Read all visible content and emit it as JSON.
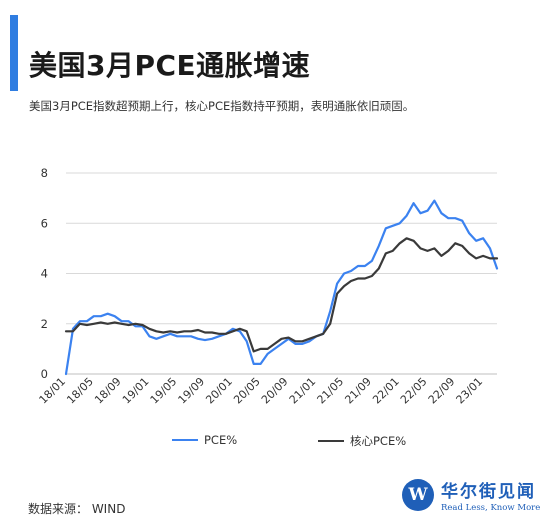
{
  "header": {
    "title": "美国3月PCE通胀增速",
    "subtitle": "美国3月PCE指数超预期上行，核心PCE指数持平预期，表明通胀依旧顽固。"
  },
  "footer": {
    "source": "数据来源： WIND",
    "logo_name": "华尔街见闻",
    "logo_slogan": "Read Less, Know More",
    "logo_mark": "W"
  },
  "colors": {
    "pce": "#3b82f0",
    "core": "#3a3a3a",
    "grid": "#d9d9d9",
    "accent": "#2f7de1"
  },
  "chart_data": {
    "type": "line",
    "title": "",
    "xlabel": "",
    "ylabel": "",
    "ylim": [
      0,
      8
    ],
    "yticks": [
      0,
      2,
      4,
      6,
      8
    ],
    "grid": "horizontal",
    "legend_position": "bottom",
    "x": [
      "2018-01",
      "2018-02",
      "2018-03",
      "2018-04",
      "2018-05",
      "2018-06",
      "2018-07",
      "2018-08",
      "2018-09",
      "2018-10",
      "2018-11",
      "2018-12",
      "2019-01",
      "2019-02",
      "2019-03",
      "2019-04",
      "2019-05",
      "2019-06",
      "2019-07",
      "2019-08",
      "2019-09",
      "2019-10",
      "2019-11",
      "2019-12",
      "2020-01",
      "2020-02",
      "2020-03",
      "2020-04",
      "2020-05",
      "2020-06",
      "2020-07",
      "2020-08",
      "2020-09",
      "2020-10",
      "2020-11",
      "2020-12",
      "2021-01",
      "2021-02",
      "2021-03",
      "2021-04",
      "2021-05",
      "2021-06",
      "2021-07",
      "2021-08",
      "2021-09",
      "2021-10",
      "2021-11",
      "2021-12",
      "2022-01",
      "2022-02",
      "2022-03",
      "2022-04",
      "2022-05",
      "2022-06",
      "2022-07",
      "2022-08",
      "2022-09",
      "2022-10",
      "2022-11",
      "2022-12",
      "2023-01",
      "2023-02",
      "2023-03"
    ],
    "xtick_labels": [
      "18/01",
      "18/05",
      "18/09",
      "19/01",
      "19/05",
      "19/09",
      "20/01",
      "20/05",
      "20/09",
      "21/01",
      "21/05",
      "21/09",
      "22/01",
      "22/05",
      "22/09",
      "23/01"
    ],
    "series": [
      {
        "name": "PCE%",
        "color_key": "pce",
        "values": [
          0.0,
          1.8,
          2.1,
          2.1,
          2.3,
          2.3,
          2.4,
          2.3,
          2.1,
          2.1,
          1.9,
          1.9,
          1.5,
          1.4,
          1.5,
          1.6,
          1.5,
          1.5,
          1.5,
          1.4,
          1.35,
          1.4,
          1.5,
          1.6,
          1.8,
          1.7,
          1.3,
          0.4,
          0.4,
          0.8,
          1.0,
          1.2,
          1.4,
          1.2,
          1.2,
          1.3,
          1.5,
          1.6,
          2.5,
          3.6,
          4.0,
          4.1,
          4.3,
          4.3,
          4.5,
          5.1,
          5.8,
          5.9,
          6.0,
          6.3,
          6.8,
          6.4,
          6.5,
          6.9,
          6.4,
          6.2,
          6.2,
          6.1,
          5.6,
          5.3,
          5.4,
          5.0,
          4.2
        ]
      },
      {
        "name": "核心PCE%",
        "color_key": "core",
        "values": [
          1.7,
          1.7,
          2.0,
          1.95,
          2.0,
          2.05,
          2.0,
          2.05,
          2.0,
          1.95,
          2.0,
          1.95,
          1.8,
          1.7,
          1.65,
          1.7,
          1.65,
          1.7,
          1.7,
          1.75,
          1.65,
          1.65,
          1.6,
          1.6,
          1.7,
          1.8,
          1.7,
          0.9,
          1.0,
          1.0,
          1.2,
          1.4,
          1.45,
          1.3,
          1.3,
          1.4,
          1.5,
          1.6,
          2.0,
          3.2,
          3.5,
          3.7,
          3.8,
          3.8,
          3.9,
          4.2,
          4.8,
          4.9,
          5.2,
          5.4,
          5.3,
          5.0,
          4.9,
          5.0,
          4.7,
          4.9,
          5.2,
          5.1,
          4.8,
          4.6,
          4.7,
          4.6,
          4.6
        ]
      }
    ]
  }
}
